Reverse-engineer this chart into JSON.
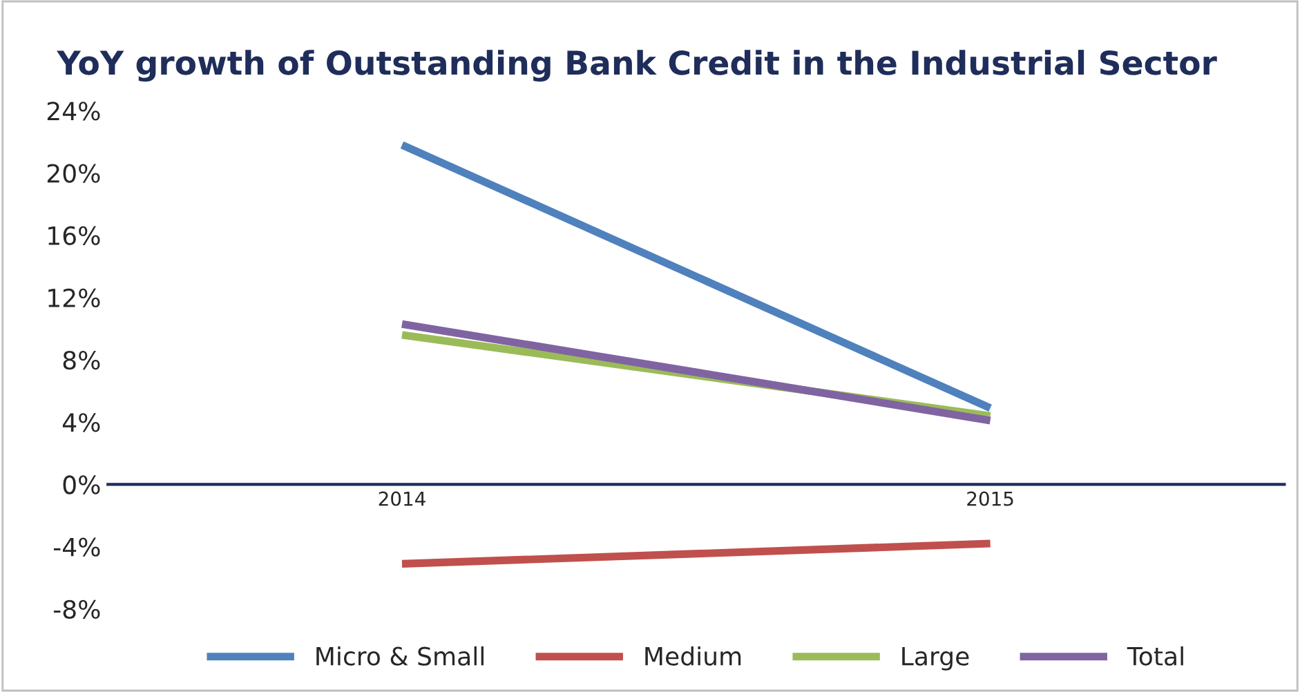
{
  "chart_data": {
    "type": "line",
    "title": "YoY growth of Outstanding Bank Credit in the Industrial Sector",
    "categories": [
      "2014",
      "2015"
    ],
    "series": [
      {
        "name": "Micro & Small",
        "color": "#4f81bd",
        "values": [
          21.8,
          4.9
        ]
      },
      {
        "name": "Medium",
        "color": "#c0504d",
        "values": [
          -5.1,
          -3.8
        ]
      },
      {
        "name": "Large",
        "color": "#9bbb59",
        "values": [
          9.6,
          4.4
        ]
      },
      {
        "name": "Total",
        "color": "#8064a2",
        "values": [
          10.3,
          4.1
        ]
      }
    ],
    "ylim": [
      -8,
      24
    ],
    "yticks": [
      {
        "value": -8,
        "label": "-8%"
      },
      {
        "value": -4,
        "label": "-4%"
      },
      {
        "value": 0,
        "label": "0%"
      },
      {
        "value": 4,
        "label": "4%"
      },
      {
        "value": 8,
        "label": "8%"
      },
      {
        "value": 12,
        "label": "12%"
      },
      {
        "value": 16,
        "label": "16%"
      },
      {
        "value": 20,
        "label": "20%"
      },
      {
        "value": 24,
        "label": "24%"
      }
    ],
    "grid": false,
    "legend": "bottom",
    "marker": "none",
    "line_style": "solid"
  }
}
